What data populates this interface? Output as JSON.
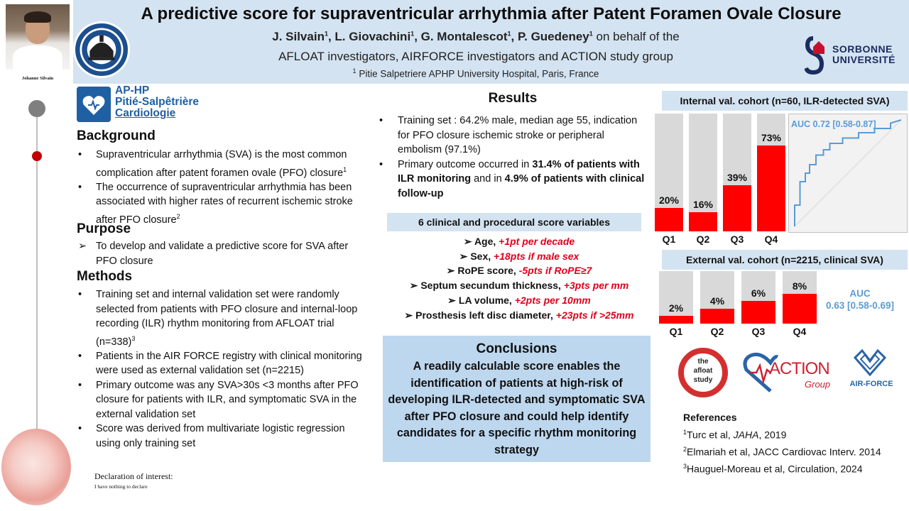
{
  "header": {
    "title": "A predictive score for supraventricular arrhythmia after Patent Foramen Ovale Closure",
    "authors": [
      {
        "name": "J. Silvain",
        "sup": "1"
      },
      {
        "name": "L. Giovachini",
        "sup": "1"
      },
      {
        "name": "G. Montalescot",
        "sup": "1"
      },
      {
        "name": "P. Guedeney",
        "sup": "1"
      }
    ],
    "authors_suffix": "on behalf of the",
    "authors_line2": "AFLOAT investigators, AIRFORCE investigators and ACTION study group",
    "affiliation_sup": "1",
    "affiliation": "Pitie Salpetriere APHP University Hospital, Paris, France"
  },
  "photo_caption": "Johanne Silvain",
  "logos": {
    "sorbonne_line1": "SORBONNE",
    "sorbonne_line2": "UNIVERSITÉ",
    "aphp_line1": "AP-HP",
    "aphp_line2": "Pitié-Salpêtrière",
    "aphp_line3": "Cardiologie",
    "afloat_line1": "the",
    "afloat_line2": "afloat",
    "afloat_line3": "study",
    "action_text": "ACTION",
    "action_group": "Group",
    "airforce_text": "AIR-FORCE"
  },
  "background": {
    "heading": "Background",
    "items": [
      {
        "text": "Supraventricular arrhythmia (SVA) is the most common complication after patent foramen ovale (PFO) closure",
        "sup": "1"
      },
      {
        "text": "The occurrence of supraventricular arrhythmia has been associated with higher rates of recurrent ischemic stroke after PFO closure",
        "sup": "2"
      }
    ]
  },
  "purpose": {
    "heading": "Purpose",
    "items": [
      {
        "text": "To develop and validate a predictive score for SVA after PFO closure"
      }
    ]
  },
  "methods": {
    "heading": "Methods",
    "items": [
      {
        "text": "Training set and internal validation set were randomly selected from patients with PFO closure and internal-loop recording (ILR) rhythm monitoring from AFLOAT trial (n=338)",
        "sup": "3"
      },
      {
        "text": "Patients in the AIR FORCE registry with clinical monitoring were used as external validation set (n=2215)"
      },
      {
        "text": "Primary outcome was any SVA>30s <3 months after PFO closure for patients with ILR, and symptomatic SVA in the external validation set"
      },
      {
        "text": "Score was derived from multivariate logistic regression using only training set"
      }
    ]
  },
  "declaration": {
    "heading": "Declaration of interest:",
    "text": "I have nothing to declare"
  },
  "results": {
    "heading": "Results",
    "item1": "Training set : 64.2% male, median age 55, indication for PFO closure ischemic stroke or peripheral embolism (97.1%)",
    "item2_pre": "Primary outcome occurred in ",
    "item2_b1": "31.4% of patients with ILR monitoring",
    "item2_mid": " and in ",
    "item2_b2": "4.9% of patients with clinical follow-up"
  },
  "score_vars": {
    "heading": "6 clinical and procedural score variables",
    "items": [
      {
        "name": "Age, ",
        "pts": "+1pt per decade"
      },
      {
        "name": "Sex, ",
        "pts": "+18pts if male sex"
      },
      {
        "name": "RoPE score, ",
        "pts": "-5pts if RoPE≥7"
      },
      {
        "name": "Septum secundum thickness, ",
        "pts": "+3pts per mm"
      },
      {
        "name": "LA volume, ",
        "pts": "+2pts per 10mm"
      },
      {
        "name": "Prosthesis left disc diameter, ",
        "pts": "+23pts if >25mm"
      }
    ]
  },
  "conclusions": {
    "heading": "Conclusions",
    "text": "A readily calculable score enables the identification of patients at high-risk of developing ILR-detected and symptomatic SVA after PFO closure and could help identify candidates for a specific rhythm monitoring strategy"
  },
  "chart_data": [
    {
      "type": "bar",
      "title": "Internal val. cohort (n=60, ILR-detected SVA)",
      "categories": [
        "Q1",
        "Q2",
        "Q3",
        "Q4"
      ],
      "values": [
        20,
        16,
        39,
        73
      ],
      "value_labels": [
        "20%",
        "16%",
        "39%",
        "73%"
      ],
      "ylim": [
        0,
        100
      ],
      "bar_color": "#ff0000",
      "background_color": "#d9d9d9"
    },
    {
      "type": "line",
      "annotation": "AUC 0.72 [0.58-0.87]",
      "line_color": "#5b9bd5",
      "x": [
        0.0,
        0.0,
        0.05,
        0.05,
        0.1,
        0.1,
        0.14,
        0.14,
        0.2,
        0.2,
        0.27,
        0.27,
        0.33,
        0.33,
        0.45,
        0.45,
        0.6,
        0.6,
        0.75,
        0.75,
        0.9,
        0.9,
        1.0
      ],
      "y": [
        0.0,
        0.2,
        0.2,
        0.42,
        0.42,
        0.5,
        0.5,
        0.58,
        0.58,
        0.67,
        0.67,
        0.72,
        0.72,
        0.78,
        0.78,
        0.83,
        0.83,
        0.88,
        0.88,
        0.92,
        0.92,
        0.97,
        1.0
      ],
      "xlim": [
        0,
        1
      ],
      "ylim": [
        0,
        1
      ]
    },
    {
      "type": "bar",
      "title": "External val. cohort (n=2215, clinical SVA)",
      "categories": [
        "Q1",
        "Q2",
        "Q3",
        "Q4"
      ],
      "values": [
        2,
        4,
        6,
        8
      ],
      "value_labels": [
        "2%",
        "4%",
        "6%",
        "8%"
      ],
      "ylim": [
        0,
        14
      ],
      "bar_color": "#ff0000",
      "background_color": "#d9d9d9",
      "annotation_line1": "AUC",
      "annotation_line2": "0.63 [0.58-0.69]"
    }
  ],
  "references": {
    "heading": "References",
    "items": [
      {
        "sup": "1",
        "pre": "Turc et al, ",
        "italic": "JAHA",
        "post": ", 2019"
      },
      {
        "sup": "2",
        "pre": "Elmariah et al, JACC Cardiovac Interv. 2014",
        "italic": "",
        "post": ""
      },
      {
        "sup": "3",
        "pre": "Hauguel-Moreau et al, Circulation, 2024",
        "italic": "",
        "post": ""
      }
    ]
  }
}
